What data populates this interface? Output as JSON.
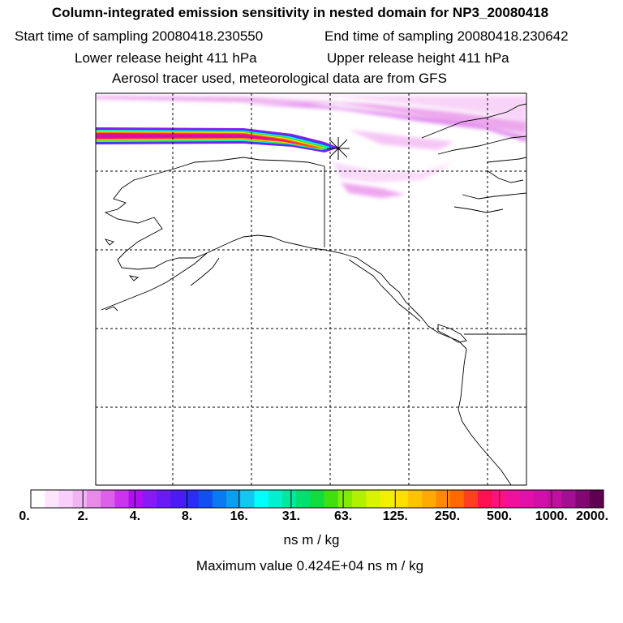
{
  "header": {
    "title": "Column-integrated emission sensitivity in nested domain for NP3_20080418",
    "start_label": "Start time of sampling 20080418.230550",
    "end_label": "End time of sampling 20080418.230642",
    "lower_label": "Lower release height  411 hPa",
    "upper_label": "Upper release height  411 hPa",
    "tracer_label": "Aerosol tracer used, meteorological data are from GFS"
  },
  "colorbar": {
    "tick_labels": [
      "0.",
      "2.",
      "4.",
      "8.",
      "16.",
      "31.",
      "63.",
      "125.",
      "250.",
      "500.",
      "1000.",
      "2000."
    ],
    "units": "ns m / kg",
    "max_label": "Maximum value  0.424E+04 ns m / kg",
    "colors": [
      "#ffffff",
      "#fde6fd",
      "#f8cff8",
      "#f2b3f2",
      "#e88ae8",
      "#dc60e8",
      "#cc33ee",
      "#b010f0",
      "#8a1af5",
      "#6a1af5",
      "#4b1af5",
      "#2c2cf5",
      "#1050f0",
      "#0a7af0",
      "#0aa0f0",
      "#10c8f0",
      "#00ffff",
      "#00f0d0",
      "#00e8a0",
      "#00e070",
      "#10dc40",
      "#40e010",
      "#80ec00",
      "#b0f000",
      "#d8f400",
      "#f0f000",
      "#ffe000",
      "#ffc400",
      "#ffaa00",
      "#ff8a00",
      "#ff6a00",
      "#ff4020",
      "#ff1050",
      "#ff1080",
      "#f010a0",
      "#e010a8",
      "#d010a8",
      "#c010a0",
      "#a01090",
      "#800870",
      "#600050"
    ]
  },
  "colors": {
    "frame": "#000000",
    "coast": "#000000",
    "grid": "#000000"
  }
}
